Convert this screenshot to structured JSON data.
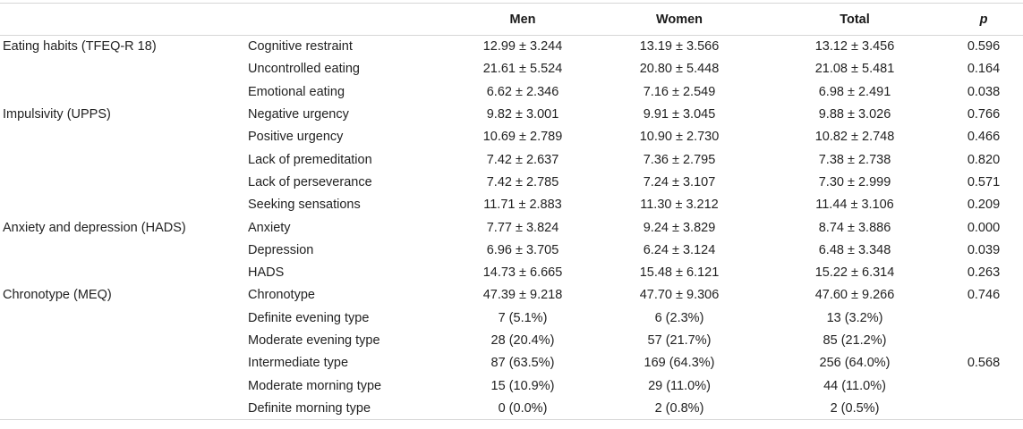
{
  "header": {
    "col_group": "",
    "col_measure": "",
    "men": "Men",
    "women": "Women",
    "total": "Total",
    "p": "p"
  },
  "rows": [
    {
      "group": "Eating habits (TFEQ-R 18)",
      "measure": "Cognitive restraint",
      "men": "12.99 ± 3.244",
      "women": "13.19 ± 3.566",
      "total": "13.12 ± 3.456",
      "p": "0.596"
    },
    {
      "group": "",
      "measure": "Uncontrolled eating",
      "men": "21.61 ± 5.524",
      "women": "20.80 ± 5.448",
      "total": "21.08 ± 5.481",
      "p": "0.164"
    },
    {
      "group": "",
      "measure": "Emotional eating",
      "men": "6.62 ± 2.346",
      "women": "7.16 ± 2.549",
      "total": "6.98 ± 2.491",
      "p": "0.038"
    },
    {
      "group": "Impulsivity (UPPS)",
      "measure": "Negative urgency",
      "men": "9.82 ± 3.001",
      "women": "9.91 ± 3.045",
      "total": "9.88 ± 3.026",
      "p": "0.766"
    },
    {
      "group": "",
      "measure": "Positive urgency",
      "men": "10.69 ± 2.789",
      "women": "10.90 ± 2.730",
      "total": "10.82 ± 2.748",
      "p": "0.466"
    },
    {
      "group": "",
      "measure": "Lack of premeditation",
      "men": "7.42 ± 2.637",
      "women": "7.36 ± 2.795",
      "total": "7.38 ± 2.738",
      "p": "0.820"
    },
    {
      "group": "",
      "measure": "Lack of perseverance",
      "men": "7.42 ± 2.785",
      "women": "7.24 ± 3.107",
      "total": "7.30 ± 2.999",
      "p": "0.571"
    },
    {
      "group": "",
      "measure": "Seeking sensations",
      "men": "11.71 ± 2.883",
      "women": "11.30 ± 3.212",
      "total": "11.44 ± 3.106",
      "p": "0.209"
    },
    {
      "group": "Anxiety and depression (HADS)",
      "measure": "Anxiety",
      "men": "7.77 ± 3.824",
      "women": "9.24 ± 3.829",
      "total": "8.74 ± 3.886",
      "p": "0.000"
    },
    {
      "group": "",
      "measure": "Depression",
      "men": "6.96 ± 3.705",
      "women": "6.24 ± 3.124",
      "total": "6.48 ± 3.348",
      "p": "0.039"
    },
    {
      "group": "",
      "measure": "HADS",
      "men": "14.73 ± 6.665",
      "women": "15.48 ± 6.121",
      "total": "15.22 ± 6.314",
      "p": "0.263"
    },
    {
      "group": "Chronotype (MEQ)",
      "measure": "Chronotype",
      "men": "47.39 ± 9.218",
      "women": "47.70 ± 9.306",
      "total": "47.60 ± 9.266",
      "p": "0.746"
    },
    {
      "group": "",
      "measure": "Definite evening type",
      "men": "7 (5.1%)",
      "women": "6 (2.3%)",
      "total": "13 (3.2%)",
      "p": ""
    },
    {
      "group": "",
      "measure": "Moderate evening type",
      "men": "28 (20.4%)",
      "women": "57 (21.7%)",
      "total": "85 (21.2%)",
      "p": ""
    },
    {
      "group": "",
      "measure": "Intermediate type",
      "men": "87 (63.5%)",
      "women": "169 (64.3%)",
      "total": "256 (64.0%)",
      "p": "0.568"
    },
    {
      "group": "",
      "measure": "Moderate morning type",
      "men": "15 (10.9%)",
      "women": "29 (11.0%)",
      "total": "44 (11.0%)",
      "p": ""
    },
    {
      "group": "",
      "measure": "Definite morning type",
      "men": "0 (0.0%)",
      "women": "2 (0.8%)",
      "total": "2 (0.5%)",
      "p": ""
    }
  ]
}
